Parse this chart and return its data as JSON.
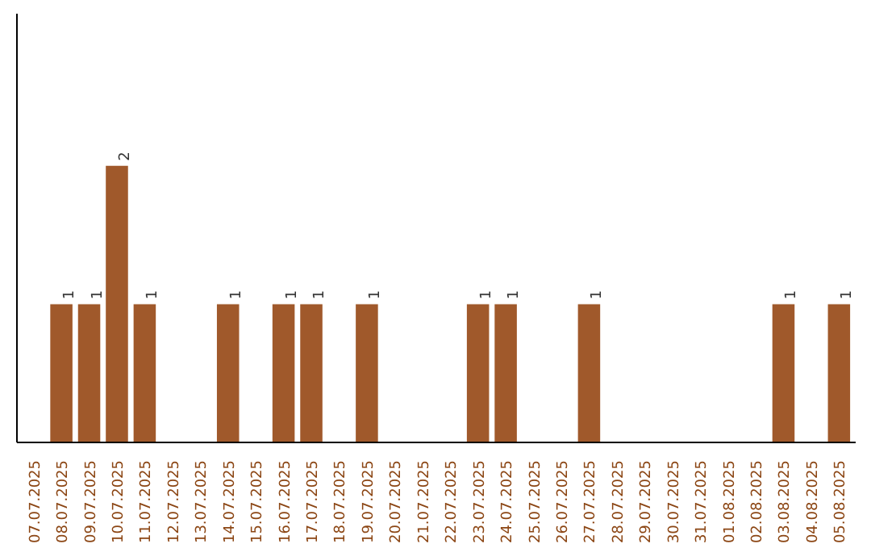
{
  "chart_data": {
    "type": "bar",
    "categories": [
      "07.07.2025",
      "08.07.2025",
      "09.07.2025",
      "10.07.2025",
      "11.07.2025",
      "12.07.2025",
      "13.07.2025",
      "14.07.2025",
      "15.07.2025",
      "16.07.2025",
      "17.07.2025",
      "18.07.2025",
      "19.07.2025",
      "20.07.2025",
      "21.07.2025",
      "22.07.2025",
      "23.07.2025",
      "24.07.2025",
      "25.07.2025",
      "26.07.2025",
      "27.07.2025",
      "28.07.2025",
      "29.07.2025",
      "30.07.2025",
      "31.07.2025",
      "01.08.2025",
      "02.08.2025",
      "03.08.2025",
      "04.08.2025",
      "05.08.2025"
    ],
    "values": [
      0,
      1,
      1,
      2,
      1,
      0,
      0,
      1,
      0,
      1,
      1,
      0,
      1,
      0,
      0,
      0,
      1,
      1,
      0,
      0,
      1,
      0,
      0,
      0,
      0,
      0,
      0,
      1,
      0,
      1
    ],
    "value_labels": [
      null,
      "1",
      "1",
      "2",
      "1",
      null,
      null,
      "1",
      null,
      "1",
      "1",
      null,
      "1",
      null,
      null,
      null,
      "1",
      "1",
      null,
      null,
      "1",
      null,
      null,
      null,
      null,
      null,
      null,
      "1",
      null,
      "1"
    ],
    "color": "#a0592b",
    "ylim": [
      0,
      3.1
    ],
    "tick_labels": "x",
    "grid": false
  }
}
